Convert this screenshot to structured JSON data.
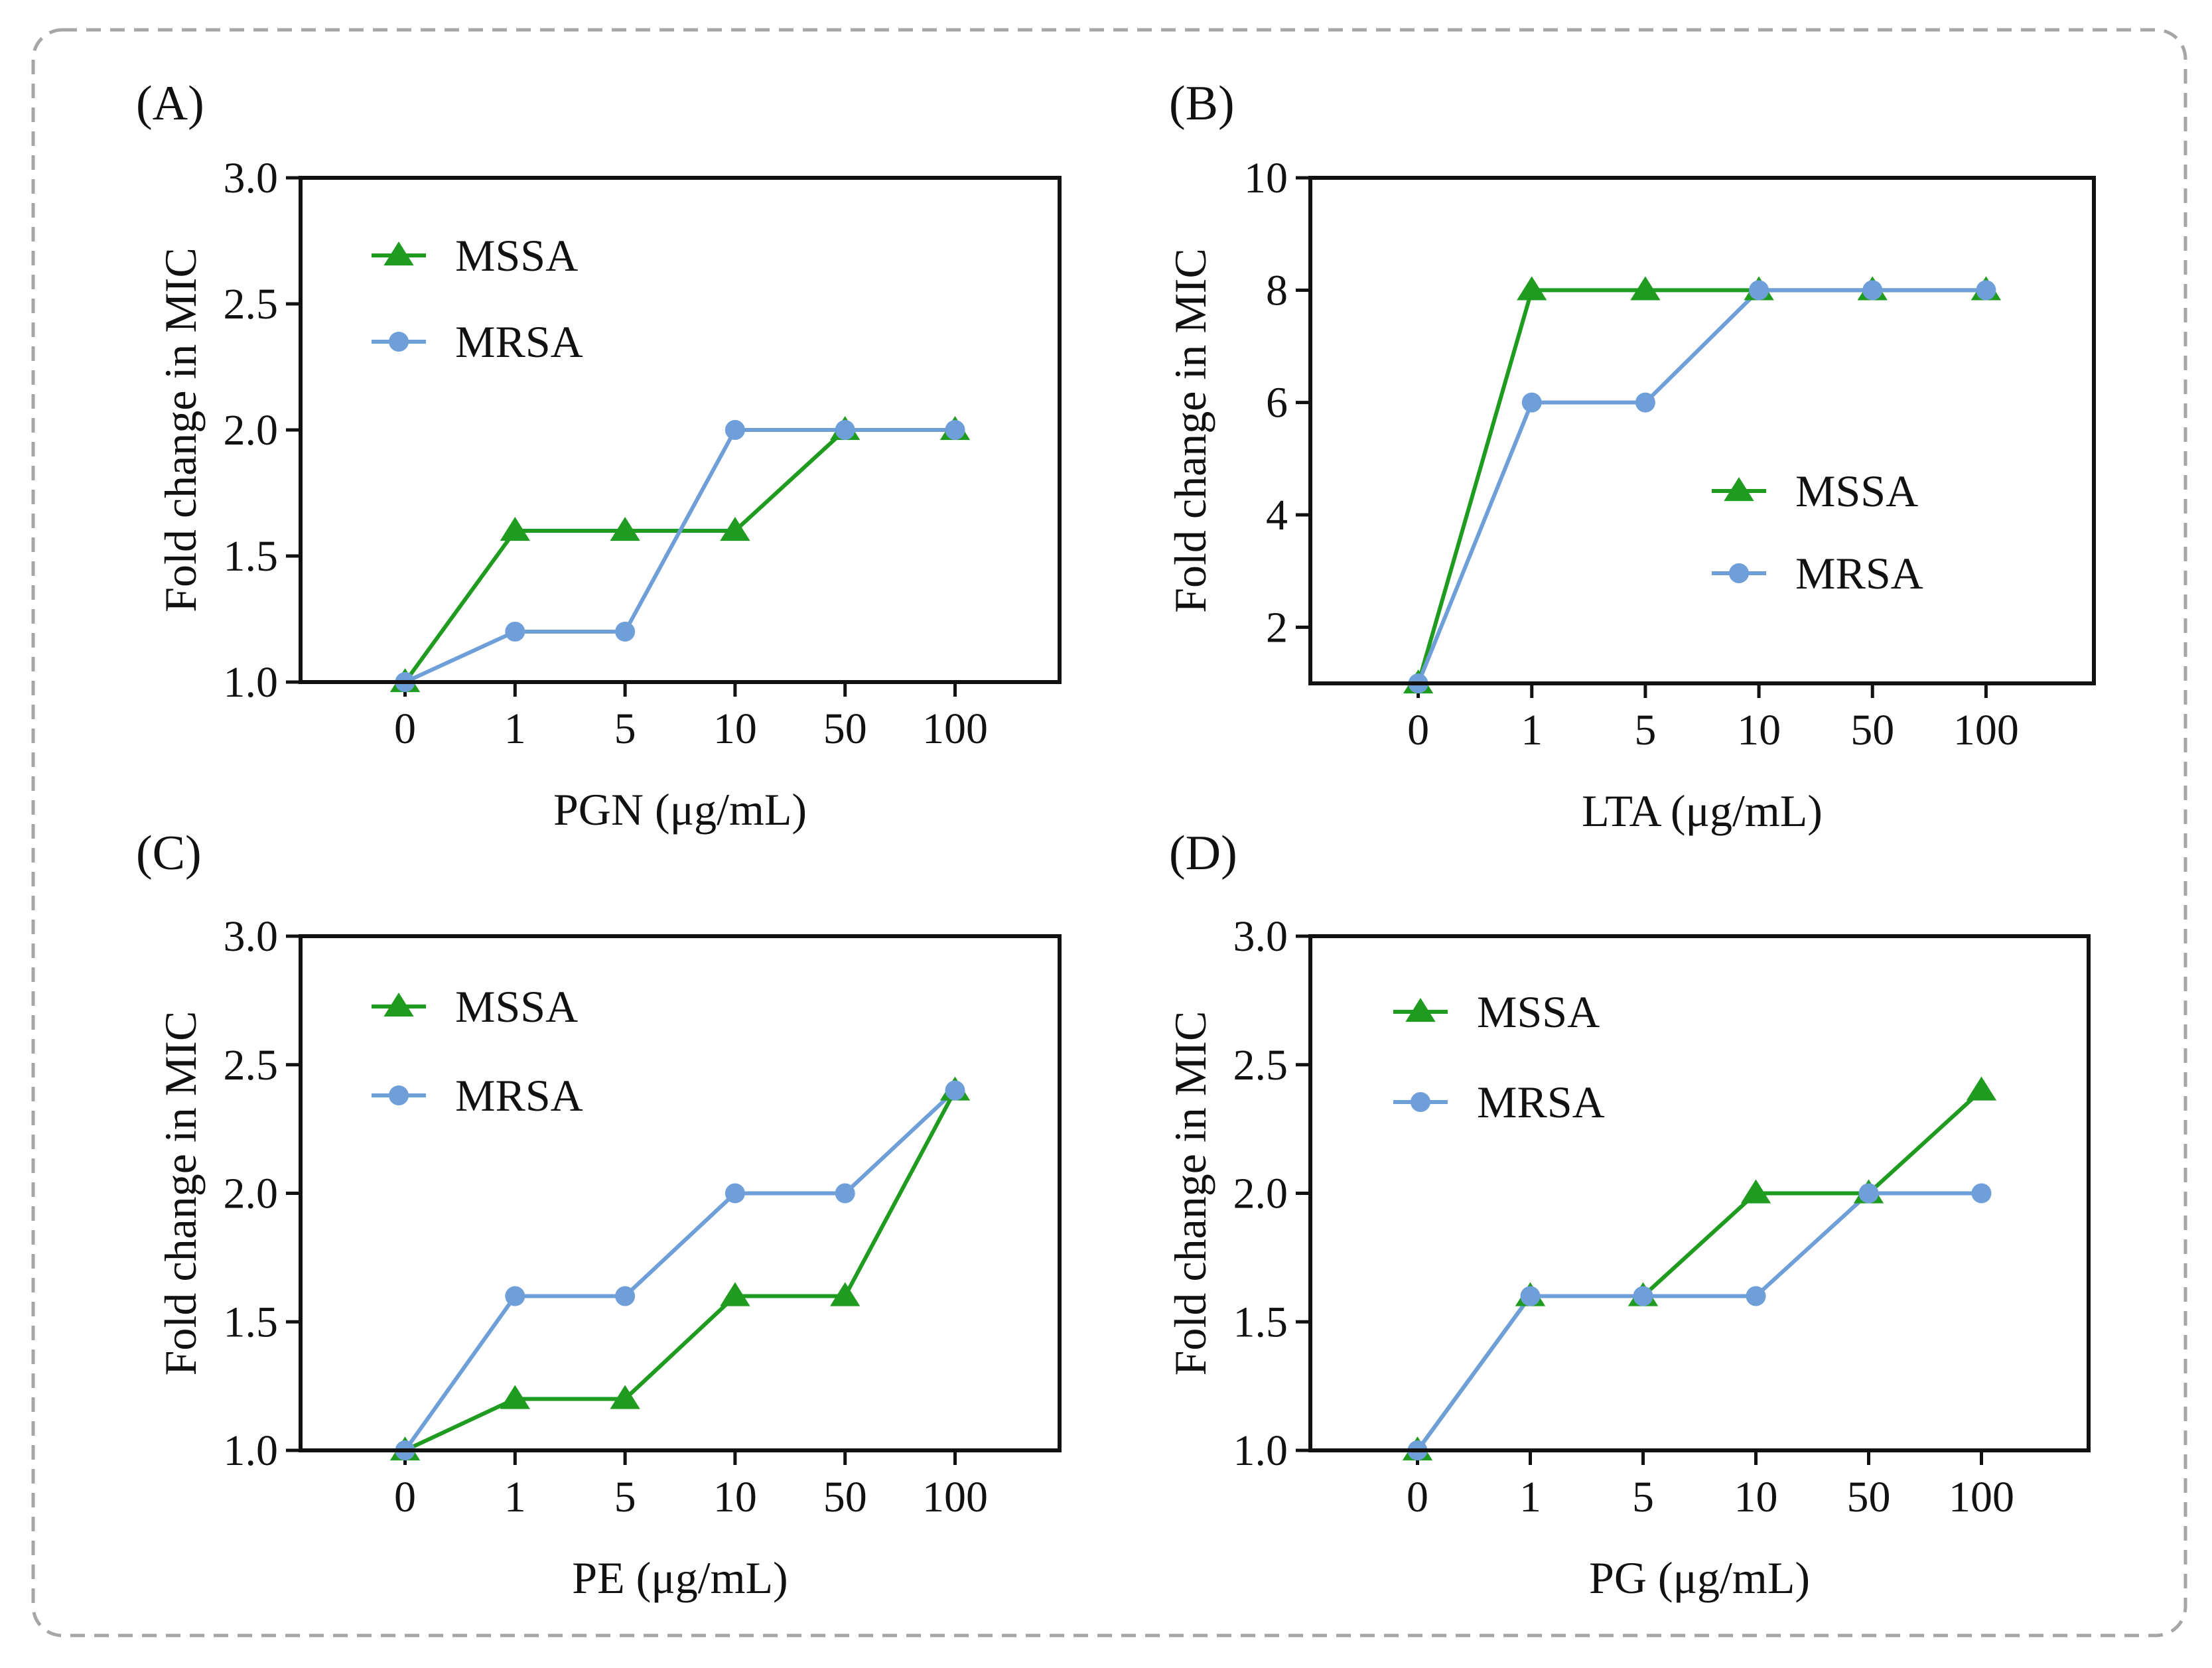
{
  "colors": {
    "MSSA": "#1f9b1f",
    "MRSA": "#6f9fd8",
    "axis": "#111111",
    "frame": "#a6a6a6"
  },
  "chart_data": [
    {
      "type": "line",
      "panel": "(A)",
      "categories": [
        "0",
        "1",
        "5",
        "10",
        "50",
        "100"
      ],
      "xlabel": "PGN (μg/mL)",
      "ylabel": "Fold change in MIC",
      "ylim": [
        1.0,
        3.0
      ],
      "yticks": [
        "1.0",
        "1.5",
        "2.0",
        "2.5",
        "3.0"
      ],
      "legend_position": "top-left",
      "series": [
        {
          "name": "MSSA",
          "marker": "triangle",
          "values": [
            1.0,
            1.6,
            1.6,
            1.6,
            2.0,
            2.0
          ]
        },
        {
          "name": "MRSA",
          "marker": "circle",
          "values": [
            1.0,
            1.2,
            1.2,
            2.0,
            2.0,
            2.0
          ]
        }
      ]
    },
    {
      "type": "line",
      "panel": "(B)",
      "categories": [
        "0",
        "1",
        "5",
        "10",
        "50",
        "100"
      ],
      "xlabel": "LTA (μg/mL)",
      "ylabel": "Fold change in MIC",
      "ylim": [
        1,
        10
      ],
      "yticks": [
        "2",
        "4",
        "6",
        "8",
        "10"
      ],
      "legend_position": "middle-right",
      "series": [
        {
          "name": "MSSA",
          "marker": "triangle",
          "values": [
            1,
            8,
            8,
            8,
            8,
            8
          ]
        },
        {
          "name": "MRSA",
          "marker": "circle",
          "values": [
            1,
            6,
            6,
            8,
            8,
            8
          ]
        }
      ]
    },
    {
      "type": "line",
      "panel": "(C)",
      "categories": [
        "0",
        "1",
        "5",
        "10",
        "50",
        "100"
      ],
      "xlabel": "PE (μg/mL)",
      "ylabel": "Fold change in MIC",
      "ylim": [
        1.0,
        3.0
      ],
      "yticks": [
        "1.0",
        "1.5",
        "2.0",
        "2.5",
        "3.0"
      ],
      "legend_position": "top-left",
      "series": [
        {
          "name": "MSSA",
          "marker": "triangle",
          "values": [
            1.0,
            1.2,
            1.2,
            1.6,
            1.6,
            2.4
          ]
        },
        {
          "name": "MRSA",
          "marker": "circle",
          "values": [
            1.0,
            1.6,
            1.6,
            2.0,
            2.0,
            2.4
          ]
        }
      ]
    },
    {
      "type": "line",
      "panel": "(D)",
      "categories": [
        "0",
        "1",
        "5",
        "10",
        "50",
        "100"
      ],
      "xlabel": "PG (μg/mL)",
      "ylabel": "Fold change in MIC",
      "ylim": [
        1.0,
        3.0
      ],
      "yticks": [
        "1.0",
        "1.5",
        "2.0",
        "2.5",
        "3.0"
      ],
      "legend_position": "top-left",
      "series": [
        {
          "name": "MSSA",
          "marker": "triangle",
          "values": [
            1.0,
            1.6,
            1.6,
            2.0,
            2.0,
            2.4
          ]
        },
        {
          "name": "MRSA",
          "marker": "circle",
          "values": [
            1.0,
            1.6,
            1.6,
            1.6,
            2.0,
            2.0
          ]
        }
      ]
    }
  ]
}
